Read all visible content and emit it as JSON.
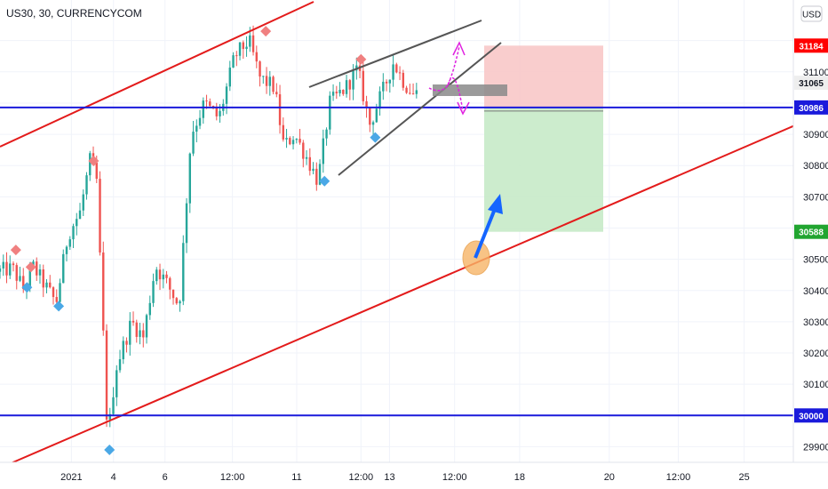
{
  "header": {
    "symbol_title": "US30, 30, CURRENCYCOM",
    "currency_button": "USD"
  },
  "colors": {
    "bull": "#26a69a",
    "bear": "#ef5350",
    "channel": "#e31b1b",
    "horizontal": "#1a1adb",
    "wedge": "#555555",
    "stop_zone": "#f8c8c8",
    "target_zone": "#c6eac8",
    "high_marker": "#f08080",
    "low_marker": "#4aa8e6",
    "arrow": "#1565ff",
    "dashed_arrow": "#e020e0",
    "circle": "#f7b567",
    "grey_box": "#8a8a8a"
  },
  "chart_data": {
    "type": "candlestick",
    "title": "US30, 30, CURRENCYCOM",
    "ylim": [
      29850,
      31330
    ],
    "y_ticks": [
      29900,
      30000,
      30100,
      30200,
      30300,
      30400,
      30500,
      30600,
      30700,
      30800,
      30900,
      31000,
      31100,
      31200
    ],
    "y_tick_labels": [
      "29900",
      "",
      "30100",
      "30200",
      "30300",
      "30400",
      "30500",
      "",
      "30700",
      "30800",
      "30900",
      "",
      "31100",
      ""
    ],
    "x_tick_labels": [
      "2021",
      "4",
      "6",
      "12:00",
      "11",
      "12:00",
      "13",
      "12:00",
      "18",
      "20",
      "12:00",
      "25"
    ],
    "x_tick_positions": [
      0.09,
      0.143,
      0.208,
      0.293,
      0.374,
      0.455,
      0.491,
      0.573,
      0.655,
      0.768,
      0.855,
      0.938
    ],
    "price_tags": [
      {
        "label": "31184",
        "value": 31184,
        "bg": "#ff0000",
        "fg": "#ffffff"
      },
      {
        "label": "31065",
        "value": 31065,
        "bg": "#eeeeee",
        "fg": "#131722"
      },
      {
        "label": "30986",
        "value": 30986,
        "bg": "#1a1adb",
        "fg": "#ffffff"
      },
      {
        "label": "30588",
        "value": 30588,
        "bg": "#21a530",
        "fg": "#ffffff"
      },
      {
        "label": "30000",
        "value": 30000,
        "bg": "#1a1adb",
        "fg": "#ffffff"
      }
    ],
    "horizontal_levels": [
      30986,
      30000
    ],
    "position": {
      "entry": 30986,
      "stop": 31184,
      "target": 30588
    },
    "key_points": [
      {
        "t": 0.0,
        "p": 30460
      },
      {
        "t": 0.02,
        "p": 30470
      },
      {
        "t": 0.035,
        "p": 30400
      },
      {
        "t": 0.045,
        "p": 30480
      },
      {
        "t": 0.06,
        "p": 30420
      },
      {
        "t": 0.075,
        "p": 30360
      },
      {
        "t": 0.09,
        "p": 30580
      },
      {
        "t": 0.105,
        "p": 30650
      },
      {
        "t": 0.118,
        "p": 30820
      },
      {
        "t": 0.126,
        "p": 30750
      },
      {
        "t": 0.132,
        "p": 30400
      },
      {
        "t": 0.14,
        "p": 29920
      },
      {
        "t": 0.15,
        "p": 30150
      },
      {
        "t": 0.17,
        "p": 30300
      },
      {
        "t": 0.185,
        "p": 30250
      },
      {
        "t": 0.2,
        "p": 30480
      },
      {
        "t": 0.215,
        "p": 30420
      },
      {
        "t": 0.23,
        "p": 30350
      },
      {
        "t": 0.245,
        "p": 30900
      },
      {
        "t": 0.262,
        "p": 31000
      },
      {
        "t": 0.28,
        "p": 30950
      },
      {
        "t": 0.3,
        "p": 31150
      },
      {
        "t": 0.318,
        "p": 31200
      },
      {
        "t": 0.332,
        "p": 31080
      },
      {
        "t": 0.35,
        "p": 31050
      },
      {
        "t": 0.362,
        "p": 30860
      },
      {
        "t": 0.375,
        "p": 30900
      },
      {
        "t": 0.39,
        "p": 30830
      },
      {
        "t": 0.405,
        "p": 30750
      },
      {
        "t": 0.42,
        "p": 31000
      },
      {
        "t": 0.44,
        "p": 31050
      },
      {
        "t": 0.455,
        "p": 31110
      },
      {
        "t": 0.47,
        "p": 30930
      },
      {
        "t": 0.49,
        "p": 31060
      },
      {
        "t": 0.5,
        "p": 31130
      },
      {
        "t": 0.515,
        "p": 31060
      },
      {
        "t": 0.525,
        "p": 31030
      }
    ],
    "high_markers": [
      {
        "t": 0.02,
        "p": 30530
      },
      {
        "t": 0.039,
        "p": 30475
      },
      {
        "t": 0.118,
        "p": 30815
      },
      {
        "t": 0.335,
        "p": 31230
      },
      {
        "t": 0.455,
        "p": 31140
      }
    ],
    "low_markers": [
      {
        "t": 0.034,
        "p": 30410
      },
      {
        "t": 0.074,
        "p": 30350
      },
      {
        "t": 0.138,
        "p": 29890
      },
      {
        "t": 0.409,
        "p": 30750
      },
      {
        "t": 0.473,
        "p": 30890
      }
    ]
  }
}
